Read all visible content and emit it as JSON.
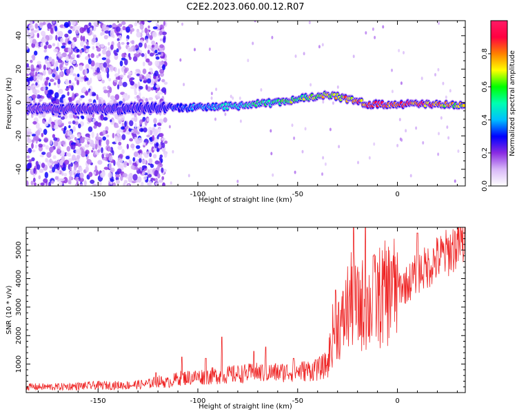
{
  "figure_title": "C2E2.2023.060.00.12.R07",
  "chart_data": [
    {
      "type": "heatmap",
      "title": "C2E2.2023.060.00.12.R07",
      "xlabel": "Height of straight line (km)",
      "ylabel": "Frequency (Hz)",
      "xlim": [
        -186,
        34
      ],
      "ylim": [
        -50,
        49
      ],
      "xticks": [
        -150,
        -100,
        -50,
        0
      ],
      "xtick_labels": [
        "-150",
        "-100",
        "-50",
        "0"
      ],
      "yticks": [
        -40,
        -20,
        0,
        20,
        40
      ],
      "ytick_labels": [
        "-40",
        "-20",
        "0",
        "20",
        "40"
      ],
      "ridge": {
        "description": "dominant spectral ridge, frequency (Hz) vs height (km)",
        "x": [
          -186,
          -160,
          -140,
          -120,
          -100,
          -80,
          -60,
          -45,
          -35,
          -25,
          -15,
          0,
          15,
          34
        ],
        "y": [
          -4,
          -4,
          -4,
          -3,
          -3,
          -2,
          0,
          3,
          5,
          2,
          -1,
          -1,
          -1,
          -2
        ],
        "peak_amplitude": [
          0.2,
          0.25,
          0.25,
          0.3,
          0.4,
          0.5,
          0.6,
          0.7,
          0.75,
          0.85,
          0.9,
          0.95,
          0.9,
          0.75
        ]
      },
      "scatter_region": {
        "x_range": [
          -186,
          -116
        ],
        "y_range": [
          -50,
          49
        ],
        "amplitude_range": [
          0.05,
          0.3
        ]
      },
      "colorbar": {
        "label": "Normalized spectral amplitude",
        "ticks": [
          0.0,
          0.2,
          0.4,
          0.6,
          0.8
        ],
        "tick_labels": [
          "0.0",
          "0.2",
          "0.4",
          "0.6",
          "0.8"
        ],
        "range": [
          0,
          1
        ],
        "colors": [
          "#ffffff",
          "#d8b8f8",
          "#8a2be2",
          "#0000ff",
          "#00bfff",
          "#00ffb0",
          "#00ff00",
          "#ffff00",
          "#ff8000",
          "#ff0040",
          "#ff1a66"
        ]
      }
    },
    {
      "type": "line",
      "xlabel": "Height of straight line (km)",
      "ylabel": "SNR (10 * v/v)",
      "xlim": [
        -186,
        34
      ],
      "ylim": [
        0,
        5800
      ],
      "xticks": [
        -150,
        -100,
        -50,
        0
      ],
      "xtick_labels": [
        "-150",
        "-100",
        "-50",
        "0"
      ],
      "yticks": [
        1000,
        2000,
        3000,
        4000,
        5000
      ],
      "ytick_labels": [
        "1000",
        "2000",
        "3000",
        "4000",
        "5000"
      ],
      "color": "#ee2222",
      "series": [
        {
          "name": "SNR",
          "x": [
            -186,
            -170,
            -150,
            -135,
            -125,
            -120,
            -115,
            -110,
            -100,
            -90,
            -80,
            -70,
            -60,
            -50,
            -40,
            -35,
            -32,
            -30,
            -28,
            -25,
            -22,
            -20,
            -18,
            -15,
            -10,
            -5,
            0,
            5,
            10,
            15,
            20,
            25,
            30,
            34
          ],
          "y": [
            200,
            200,
            250,
            260,
            300,
            400,
            350,
            500,
            550,
            600,
            650,
            700,
            700,
            750,
            800,
            1000,
            2200,
            2500,
            2300,
            3000,
            3300,
            2900,
            3100,
            3000,
            3300,
            3500,
            3700,
            3800,
            4200,
            4400,
            4700,
            4900,
            5200,
            5300
          ],
          "spikes": [
            {
              "x": -121,
              "y": 700
            },
            {
              "x": -108,
              "y": 1250
            },
            {
              "x": -96,
              "y": 1200
            },
            {
              "x": -88,
              "y": 1950
            },
            {
              "x": -72,
              "y": 1450
            },
            {
              "x": -66,
              "y": 1600
            },
            {
              "x": -52,
              "y": 1200
            },
            {
              "x": -41,
              "y": 1150
            },
            {
              "x": -31,
              "y": 3600
            },
            {
              "x": -22,
              "y": 5800
            },
            {
              "x": -16,
              "y": 5800
            },
            {
              "x": -12,
              "y": 4800
            },
            {
              "x": -3,
              "y": 4600
            },
            {
              "x": 10,
              "y": 5600
            }
          ]
        }
      ]
    }
  ]
}
